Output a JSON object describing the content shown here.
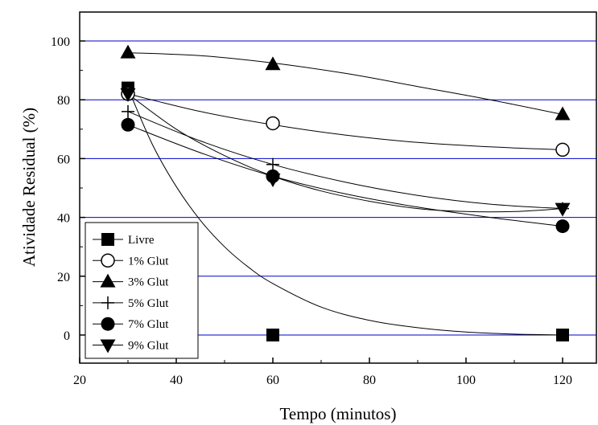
{
  "chart_data": {
    "type": "scatter",
    "title": "",
    "xlabel": "Tempo (minutos)",
    "ylabel": "Atividade Residual (%)",
    "xlim": [
      20,
      128
    ],
    "ylim": [
      -10,
      110
    ],
    "xticks": [
      20,
      40,
      60,
      80,
      100,
      120
    ],
    "yticks": [
      0,
      20,
      40,
      60,
      80,
      100
    ],
    "grid": "horizontal",
    "grid_color": "#0000cc",
    "legend_position": "bottom-left",
    "series": [
      {
        "name": "Livre",
        "marker": "square",
        "x": [
          30,
          60,
          120
        ],
        "y": [
          84,
          0,
          0
        ],
        "fit": [
          [
            30,
            84
          ],
          [
            35,
            65
          ],
          [
            40,
            50.5
          ],
          [
            45,
            39
          ],
          [
            50,
            30
          ],
          [
            55,
            23
          ],
          [
            60,
            17.5
          ],
          [
            70,
            9.5
          ],
          [
            80,
            5
          ],
          [
            90,
            2.5
          ],
          [
            100,
            1
          ],
          [
            110,
            0.3
          ],
          [
            120,
            0
          ]
        ]
      },
      {
        "name": "1% Glut",
        "marker": "circle-open",
        "x": [
          30,
          60,
          120
        ],
        "y": [
          82,
          72,
          63
        ],
        "fit": [
          [
            30,
            82
          ],
          [
            45,
            76
          ],
          [
            60,
            71.5
          ],
          [
            75,
            68
          ],
          [
            90,
            65.5
          ],
          [
            105,
            64
          ],
          [
            120,
            63
          ]
        ]
      },
      {
        "name": "3% Glut",
        "marker": "triangle-up",
        "x": [
          30,
          60,
          120
        ],
        "y": [
          96,
          92,
          75
        ],
        "fit": [
          [
            30,
            96
          ],
          [
            45,
            95
          ],
          [
            60,
            92.5
          ],
          [
            75,
            89
          ],
          [
            90,
            84.5
          ],
          [
            105,
            80
          ],
          [
            120,
            75
          ]
        ]
      },
      {
        "name": "5% Glut",
        "marker": "plus",
        "x": [
          30,
          60,
          120
        ],
        "y": [
          76,
          58,
          43
        ],
        "fit": [
          [
            30,
            76
          ],
          [
            45,
            66
          ],
          [
            60,
            58
          ],
          [
            75,
            52
          ],
          [
            90,
            47.5
          ],
          [
            105,
            44.5
          ],
          [
            120,
            43
          ]
        ]
      },
      {
        "name": "7% Glut",
        "marker": "circle-filled",
        "x": [
          30,
          60,
          120
        ],
        "y": [
          71.5,
          54,
          37
        ],
        "fit": [
          [
            30,
            71.5
          ],
          [
            45,
            62
          ],
          [
            60,
            54
          ],
          [
            75,
            48
          ],
          [
            90,
            43.5
          ],
          [
            105,
            40
          ],
          [
            120,
            37
          ]
        ]
      },
      {
        "name": "9% Glut",
        "marker": "triangle-down",
        "x": [
          30,
          60,
          120
        ],
        "y": [
          82,
          53,
          43
        ],
        "fit": [
          [
            30,
            82
          ],
          [
            40,
            70
          ],
          [
            50,
            61
          ],
          [
            60,
            54
          ],
          [
            70,
            49
          ],
          [
            80,
            45.5
          ],
          [
            90,
            43
          ],
          [
            100,
            42
          ],
          [
            110,
            42
          ],
          [
            120,
            43
          ]
        ]
      }
    ]
  }
}
